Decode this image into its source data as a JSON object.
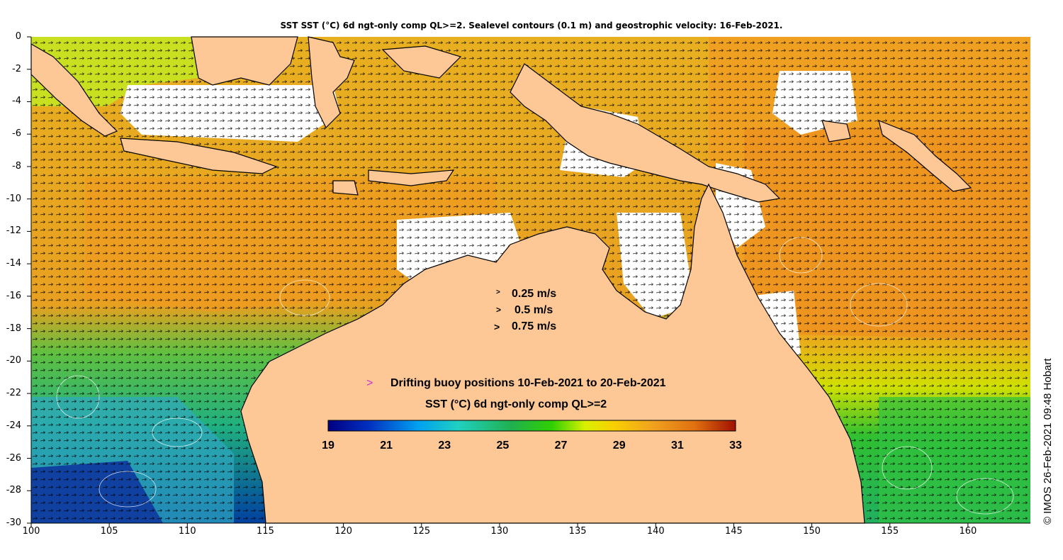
{
  "title": "SST SST (°C) 6d ngt-only comp QL>=2. Sealevel contours (0.1 m) and geostrophic velocity: 16-Feb-2021.",
  "credit": "© IMOS 26-Feb-2021 09:48 Hobart",
  "map": {
    "lon_range": [
      100,
      164
    ],
    "lat_range": [
      -30,
      0
    ],
    "x_tick_labels": [
      "100",
      "105",
      "110",
      "115",
      "120",
      "125",
      "130",
      "135",
      "140",
      "145",
      "150",
      "155",
      "160"
    ],
    "y_tick_labels": [
      "0",
      "-2",
      "-4",
      "-6",
      "-8",
      "-10",
      "-12",
      "-14",
      "-16",
      "-18",
      "-20",
      "-22",
      "-24",
      "-26",
      "-28",
      "-30"
    ]
  },
  "velocity_legend": {
    "entries": [
      "0.25 m/s",
      "0.5 m/s",
      "0.75 m/s"
    ],
    "arrow_glyph": ">"
  },
  "buoy_legend": {
    "marker": ">",
    "label": "Drifting buoy positions 10-Feb-2021 to 20-Feb-2021",
    "marker_color": "#cc33cc"
  },
  "colorbar": {
    "title": "SST (°C) 6d ngt-only comp QL>=2",
    "ticks": [
      "19",
      "21",
      "23",
      "25",
      "27",
      "29",
      "31",
      "33"
    ],
    "range": [
      19,
      33
    ]
  },
  "colors": {
    "land": "#fdc896",
    "cloud": "#ffffff",
    "warm": "#f0a020",
    "cool": "#20b050"
  }
}
